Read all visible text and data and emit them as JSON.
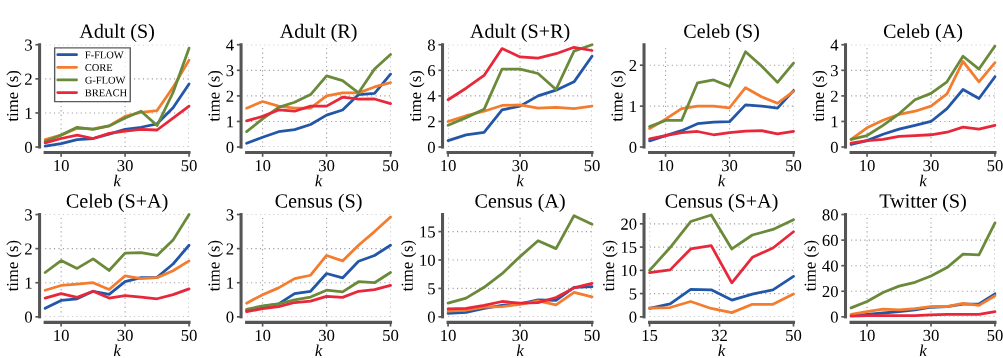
{
  "chart_data": [
    {
      "type": "line",
      "title": "Adult (S)",
      "xlabel": "k",
      "ylabel": "time (s)",
      "x": [
        5,
        10,
        15,
        20,
        25,
        30,
        35,
        40,
        45,
        50
      ],
      "xlim": [
        5,
        50
      ],
      "xticks": [
        10,
        30,
        50
      ],
      "ylim": [
        0,
        3
      ],
      "yticks": [
        0,
        1,
        2,
        3
      ],
      "grid": true,
      "legend": "top left",
      "series": [
        {
          "name": "F-FLOW",
          "color": "#2257a8",
          "values": [
            0.03,
            0.1,
            0.22,
            0.25,
            0.38,
            0.52,
            0.58,
            0.68,
            1.15,
            1.85
          ]
        },
        {
          "name": "CORE",
          "color": "#f47c2f",
          "values": [
            0.22,
            0.35,
            0.55,
            0.53,
            0.62,
            0.9,
            1.02,
            1.07,
            1.75,
            2.55
          ]
        },
        {
          "name": "G-FLOW",
          "color": "#6a8a3a",
          "values": [
            0.17,
            0.35,
            0.58,
            0.52,
            0.62,
            0.85,
            1.05,
            0.63,
            1.6,
            2.9
          ]
        },
        {
          "name": "BREACH",
          "color": "#e8283a",
          "values": [
            0.12,
            0.25,
            0.35,
            0.25,
            0.4,
            0.47,
            0.52,
            0.5,
            0.85,
            1.2
          ]
        }
      ]
    },
    {
      "type": "line",
      "title": "Adult (R)",
      "xlabel": "k",
      "ylabel": "time (s)",
      "x": [
        5,
        10,
        15,
        20,
        25,
        30,
        35,
        40,
        45,
        50
      ],
      "xlim": [
        5,
        50
      ],
      "xticks": [
        10,
        30,
        50
      ],
      "ylim": [
        0,
        4
      ],
      "yticks": [
        0,
        1,
        2,
        3,
        4
      ],
      "grid": true,
      "series": [
        {
          "color": "#2257a8",
          "values": [
            0.15,
            0.38,
            0.6,
            0.68,
            0.88,
            1.25,
            1.45,
            2.05,
            2.1,
            2.85
          ]
        },
        {
          "color": "#f47c2f",
          "values": [
            1.52,
            1.78,
            1.6,
            1.52,
            1.52,
            2.0,
            2.12,
            2.12,
            2.35,
            2.52
          ]
        },
        {
          "color": "#6a8a3a",
          "values": [
            0.6,
            1.1,
            1.55,
            1.75,
            2.05,
            2.78,
            2.6,
            2.12,
            3.05,
            3.62
          ]
        },
        {
          "color": "#e8283a",
          "values": [
            1.02,
            1.2,
            1.45,
            1.4,
            1.6,
            1.6,
            1.95,
            1.87,
            1.88,
            1.7
          ]
        }
      ]
    },
    {
      "type": "line",
      "title": "Adult (S+R)",
      "xlabel": "k",
      "ylabel": "time (s)",
      "x": [
        10,
        15,
        20,
        25,
        30,
        35,
        40,
        45,
        50
      ],
      "xlim": [
        10,
        50
      ],
      "xticks": [
        10,
        30,
        50
      ],
      "ylim": [
        0,
        8
      ],
      "yticks": [
        0,
        2,
        4,
        6,
        8
      ],
      "grid": true,
      "series": [
        {
          "color": "#2257a8",
          "values": [
            0.5,
            0.95,
            1.15,
            2.9,
            3.2,
            4.0,
            4.45,
            5.1,
            7.1
          ]
        },
        {
          "color": "#f47c2f",
          "values": [
            2.0,
            2.45,
            2.8,
            3.25,
            3.3,
            3.05,
            3.1,
            3.0,
            3.2
          ]
        },
        {
          "color": "#6a8a3a",
          "values": [
            1.7,
            2.3,
            2.95,
            6.1,
            6.1,
            5.75,
            4.5,
            7.5,
            8.0
          ]
        },
        {
          "color": "#e8283a",
          "values": [
            3.7,
            4.6,
            5.6,
            7.7,
            7.05,
            6.95,
            7.3,
            7.8,
            7.55
          ]
        }
      ]
    },
    {
      "type": "line",
      "title": "Celeb (S)",
      "xlabel": "k",
      "ylabel": "time (s)",
      "x": [
        5,
        10,
        15,
        20,
        25,
        30,
        35,
        40,
        45,
        50
      ],
      "xlim": [
        5,
        50
      ],
      "xticks": [
        10,
        30,
        50
      ],
      "ylim": [
        0,
        2.5
      ],
      "yticks": [
        0,
        1,
        2
      ],
      "grid": true,
      "series": [
        {
          "color": "#2257a8",
          "values": [
            0.15,
            0.28,
            0.4,
            0.57,
            0.61,
            0.62,
            1.03,
            1.0,
            0.95,
            1.38
          ]
        },
        {
          "color": "#f47c2f",
          "values": [
            0.45,
            0.68,
            0.94,
            1.0,
            1.0,
            0.96,
            1.45,
            1.23,
            1.07,
            1.36
          ]
        },
        {
          "color": "#6a8a3a",
          "values": [
            0.5,
            0.65,
            0.65,
            1.57,
            1.64,
            1.48,
            2.33,
            1.98,
            1.58,
            2.05
          ]
        },
        {
          "color": "#e8283a",
          "values": [
            0.2,
            0.28,
            0.35,
            0.38,
            0.3,
            0.35,
            0.39,
            0.4,
            0.32,
            0.38
          ]
        }
      ]
    },
    {
      "type": "line",
      "title": "Celeb (A)",
      "xlabel": "k",
      "ylabel": "time (s)",
      "x": [
        5,
        10,
        15,
        20,
        25,
        30,
        35,
        40,
        45,
        50
      ],
      "xlim": [
        5,
        50
      ],
      "xticks": [
        10,
        30,
        50
      ],
      "ylim": [
        0,
        4
      ],
      "yticks": [
        0,
        1,
        2,
        3,
        4
      ],
      "grid": true,
      "series": [
        {
          "color": "#2257a8",
          "values": [
            0.1,
            0.25,
            0.5,
            0.7,
            0.85,
            1.0,
            1.5,
            2.25,
            1.9,
            2.75
          ]
        },
        {
          "color": "#f47c2f",
          "values": [
            0.3,
            0.75,
            1.05,
            1.28,
            1.4,
            1.6,
            2.08,
            3.35,
            2.55,
            3.3
          ]
        },
        {
          "color": "#6a8a3a",
          "values": [
            0.3,
            0.45,
            0.85,
            1.3,
            1.85,
            2.1,
            2.55,
            3.55,
            3.05,
            3.95
          ]
        },
        {
          "color": "#e8283a",
          "values": [
            0.15,
            0.25,
            0.3,
            0.42,
            0.45,
            0.48,
            0.58,
            0.78,
            0.7,
            0.85
          ]
        }
      ]
    },
    {
      "type": "line",
      "title": "Celeb (S+A)",
      "xlabel": "k",
      "ylabel": "time (s)",
      "x": [
        5,
        10,
        15,
        20,
        25,
        30,
        35,
        40,
        45,
        50
      ],
      "xlim": [
        5,
        50
      ],
      "xticks": [
        10,
        30,
        50
      ],
      "ylim": [
        0,
        3
      ],
      "yticks": [
        0,
        1,
        2,
        3
      ],
      "grid": true,
      "series": [
        {
          "color": "#2257a8",
          "values": [
            0.25,
            0.48,
            0.53,
            0.75,
            0.66,
            1.03,
            1.15,
            1.16,
            1.55,
            2.1
          ]
        },
        {
          "color": "#f47c2f",
          "values": [
            0.78,
            0.92,
            0.96,
            1.0,
            0.8,
            1.2,
            1.12,
            1.15,
            1.35,
            1.64
          ]
        },
        {
          "color": "#6a8a3a",
          "values": [
            1.3,
            1.65,
            1.42,
            1.7,
            1.36,
            1.87,
            1.88,
            1.8,
            2.25,
            3.0
          ]
        },
        {
          "color": "#e8283a",
          "values": [
            0.55,
            0.68,
            0.57,
            0.75,
            0.55,
            0.62,
            0.58,
            0.53,
            0.65,
            0.82
          ]
        }
      ]
    },
    {
      "type": "line",
      "title": "Census (S)",
      "xlabel": "k",
      "ylabel": "time (s)",
      "x": [
        5,
        10,
        15,
        20,
        25,
        30,
        35,
        40,
        45,
        50
      ],
      "xlim": [
        5,
        50
      ],
      "xticks": [
        10,
        30,
        50
      ],
      "ylim": [
        0,
        3
      ],
      "yticks": [
        0,
        1,
        2,
        3
      ],
      "grid": true,
      "series": [
        {
          "color": "#2257a8",
          "values": [
            0.18,
            0.3,
            0.38,
            0.68,
            0.75,
            1.27,
            1.14,
            1.63,
            1.8,
            2.1
          ]
        },
        {
          "color": "#f47c2f",
          "values": [
            0.4,
            0.65,
            0.85,
            1.12,
            1.22,
            1.8,
            1.64,
            2.1,
            2.5,
            2.93
          ]
        },
        {
          "color": "#6a8a3a",
          "values": [
            0.22,
            0.32,
            0.38,
            0.5,
            0.58,
            0.78,
            0.73,
            1.03,
            1.0,
            1.3
          ]
        },
        {
          "color": "#e8283a",
          "values": [
            0.15,
            0.24,
            0.3,
            0.42,
            0.46,
            0.6,
            0.57,
            0.75,
            0.8,
            0.92
          ]
        }
      ]
    },
    {
      "type": "line",
      "title": "Census (A)",
      "xlabel": "k",
      "ylabel": "time (s)",
      "x": [
        10,
        15,
        20,
        25,
        30,
        35,
        40,
        45,
        50
      ],
      "xlim": [
        10,
        50
      ],
      "xticks": [
        10,
        30,
        50
      ],
      "ylim": [
        0,
        18
      ],
      "yticks": [
        0,
        5,
        10,
        15
      ],
      "grid": true,
      "series": [
        {
          "color": "#2257a8",
          "values": [
            0.6,
            0.8,
            1.5,
            2.0,
            2.3,
            3.0,
            2.9,
            5.2,
            5.3
          ]
        },
        {
          "color": "#f47c2f",
          "values": [
            1.0,
            1.2,
            1.7,
            1.8,
            2.2,
            2.8,
            2.1,
            4.3,
            3.5
          ]
        },
        {
          "color": "#6a8a3a",
          "values": [
            2.4,
            3.3,
            5.2,
            7.6,
            10.6,
            13.4,
            12.0,
            17.8,
            16.3
          ]
        },
        {
          "color": "#e8283a",
          "values": [
            1.4,
            1.5,
            2.0,
            2.7,
            2.4,
            2.5,
            3.4,
            5.1,
            5.9
          ]
        }
      ]
    },
    {
      "type": "line",
      "title": "Census (S+A)",
      "xlabel": "k",
      "ylabel": "time (s)",
      "x": [
        15,
        20,
        25,
        30,
        35,
        40,
        45,
        50
      ],
      "xlim": [
        15,
        50
      ],
      "xticks": [
        15,
        32,
        50
      ],
      "ylim": [
        0,
        22
      ],
      "yticks": [
        0,
        5,
        10,
        15,
        20
      ],
      "grid": true,
      "series": [
        {
          "color": "#2257a8",
          "values": [
            1.8,
            2.8,
            5.9,
            5.8,
            3.6,
            4.9,
            5.8,
            8.7
          ]
        },
        {
          "color": "#f47c2f",
          "values": [
            1.9,
            2.0,
            3.3,
            1.8,
            0.9,
            2.7,
            2.7,
            4.9
          ]
        },
        {
          "color": "#6a8a3a",
          "values": [
            10.0,
            14.9,
            20.5,
            21.9,
            14.6,
            17.6,
            18.8,
            20.9
          ]
        },
        {
          "color": "#e8283a",
          "values": [
            9.5,
            10.1,
            14.6,
            15.3,
            7.3,
            12.8,
            14.8,
            18.3
          ]
        }
      ]
    },
    {
      "type": "line",
      "title": "Twitter (S)",
      "xlabel": "k",
      "ylabel": "time (s)",
      "x": [
        5,
        10,
        15,
        20,
        25,
        30,
        35,
        40,
        45,
        50
      ],
      "xlim": [
        5,
        50
      ],
      "xticks": [
        10,
        30,
        50
      ],
      "ylim": [
        0,
        80
      ],
      "yticks": [
        0,
        20,
        40,
        60,
        80
      ],
      "grid": true,
      "series": [
        {
          "color": "#2257a8",
          "values": [
            1,
            2,
            3,
            4,
            5.5,
            7.5,
            8,
            10,
            10,
            18
          ]
        },
        {
          "color": "#f47c2f",
          "values": [
            2,
            4,
            6,
            5.5,
            6.5,
            8,
            8,
            10.5,
            9,
            16.5
          ]
        },
        {
          "color": "#6a8a3a",
          "values": [
            7,
            12,
            19,
            24,
            27,
            32,
            38.5,
            49,
            48.5,
            73.5
          ]
        },
        {
          "color": "#e8283a",
          "values": [
            0.5,
            1,
            1,
            1,
            1,
            1.5,
            2,
            2,
            2,
            4
          ]
        }
      ]
    }
  ]
}
